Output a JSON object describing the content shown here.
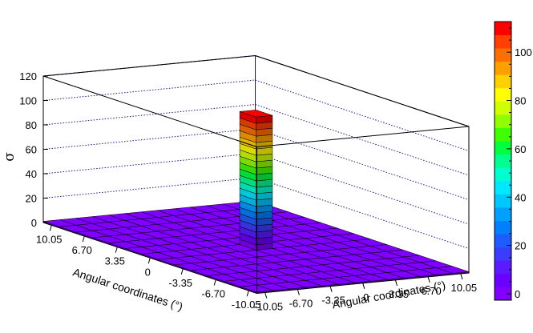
{
  "chart_data": {
    "type": "lego3d",
    "z_label": "σ",
    "x_label": "Angular coordinates (°)",
    "y_label": "Angular coordinates (°)",
    "x_tick_labels": [
      "10.05",
      "6.70",
      "3.35",
      "0",
      "-3.35",
      "-6.70",
      "-10.05"
    ],
    "y_tick_labels": [
      "-10.05",
      "-6.70",
      "-3.35",
      "0",
      "3.35",
      "6.70",
      "10.05"
    ],
    "z_tick_labels": [
      "0",
      "20",
      "40",
      "60",
      "80",
      "100",
      "120"
    ],
    "z_range": [
      0,
      120
    ],
    "grid": true,
    "bins": 13,
    "x_range": [
      -10.89,
      10.89
    ],
    "y_range": [
      -10.89,
      10.89
    ],
    "peak": {
      "x": 0,
      "y": 0,
      "value": 110
    },
    "background_level": 1,
    "colorbar": {
      "range": [
        0,
        110
      ],
      "tick_labels": [
        "0",
        "20",
        "40",
        "60",
        "80",
        "100"
      ],
      "colors": [
        "#7f00ff",
        "#6a00ff",
        "#5a1cff",
        "#3c3cff",
        "#1f5cff",
        "#0080ff",
        "#00a0ff",
        "#00c8ff",
        "#00e8ff",
        "#00ffd0",
        "#00ff90",
        "#00ff40",
        "#40ff00",
        "#90ff00",
        "#d0ff00",
        "#ffff00",
        "#ffd000",
        "#ffa000",
        "#ff7000",
        "#ff4000",
        "#ff0000"
      ]
    }
  }
}
